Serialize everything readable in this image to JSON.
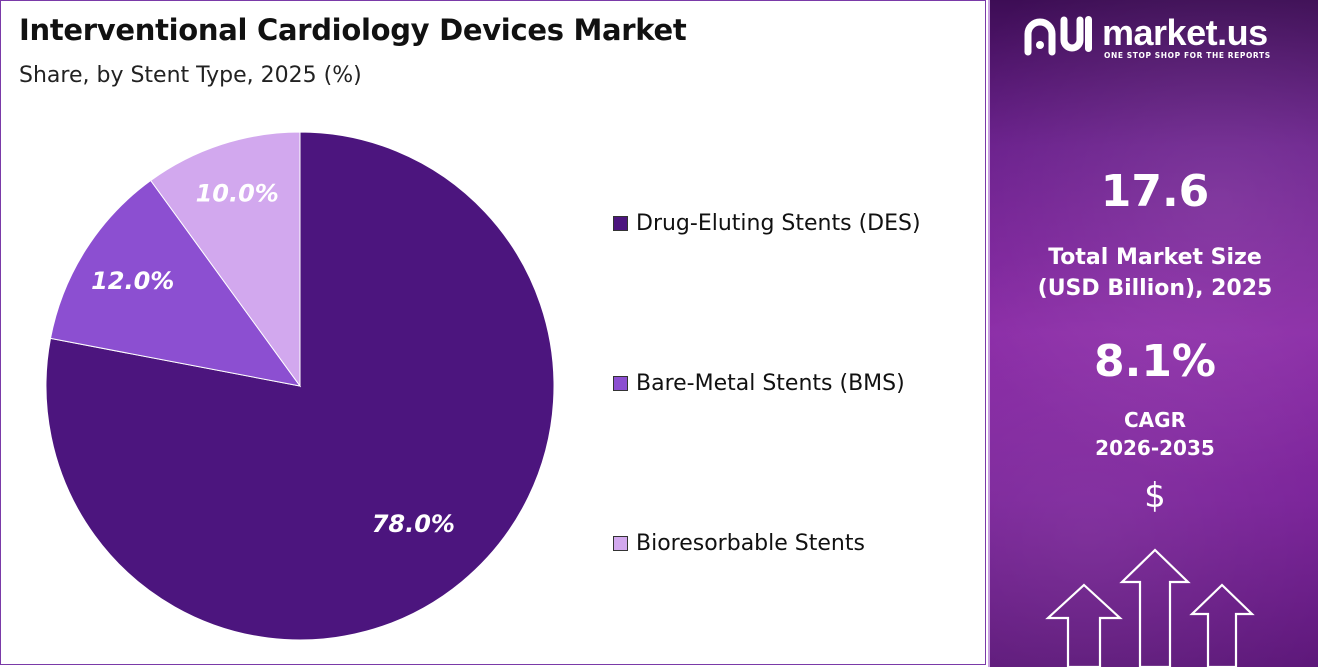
{
  "header": {
    "title": "Interventional Cardiology Devices Market",
    "subtitle": "Share, by Stent Type, 2025 (%)"
  },
  "chart_data": {
    "type": "pie",
    "title": "Interventional Cardiology Devices Market",
    "subtitle": "Share, by Stent Type, 2025 (%)",
    "categories": [
      "Drug-Eluting Stents (DES)",
      "Bare-Metal Stents (BMS)",
      "Bioresorbable Stents"
    ],
    "values": [
      78.0,
      12.0,
      10.0
    ],
    "labels": [
      "78.0%",
      "12.0%",
      "10.0%"
    ],
    "colors": [
      "#4c157e",
      "#8c4fd1",
      "#d2a8ee"
    ],
    "legend_position": "right",
    "start": "top, clockwise"
  },
  "panel": {
    "brand_name": "market.us",
    "brand_tagline": "ONE STOP SHOP FOR THE REPORTS",
    "market_size_value": "17.6",
    "market_size_label_line1": "Total Market Size",
    "market_size_label_line2": "(USD Billion), 2025",
    "cagr_value": "8.1%",
    "cagr_label_line1": "CAGR",
    "cagr_label_line2": "2026-2035",
    "dollar_symbol": "$",
    "icons": [
      "market-us-logo-icon",
      "dollar-icon",
      "up-arrow-icon"
    ]
  }
}
